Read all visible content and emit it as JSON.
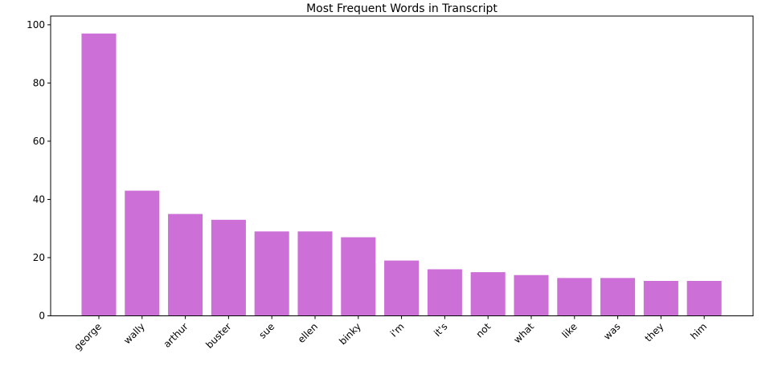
{
  "chart_data": {
    "type": "bar",
    "title": "Most Frequent Words in Transcript",
    "categories": [
      "george",
      "wally",
      "arthur",
      "buster",
      "sue",
      "ellen",
      "binky",
      "i'm",
      "it's",
      "not",
      "what",
      "like",
      "was",
      "they",
      "him"
    ],
    "values": [
      97,
      43,
      35,
      33,
      29,
      29,
      27,
      19,
      16,
      15,
      14,
      13,
      13,
      12,
      12
    ],
    "color": "#cc6fd6",
    "ylim": [
      0,
      103
    ],
    "yticks": [
      0,
      20,
      40,
      60,
      80,
      100
    ],
    "grid": false
  }
}
